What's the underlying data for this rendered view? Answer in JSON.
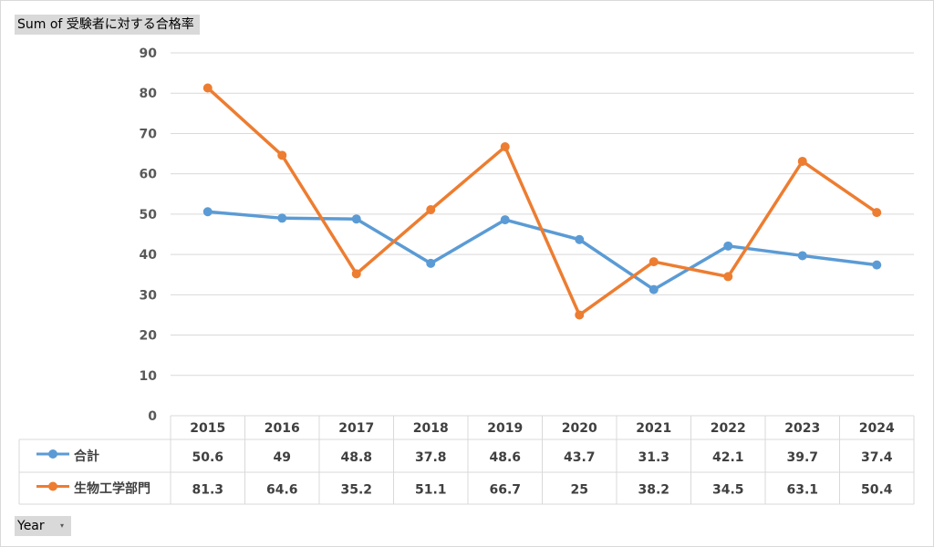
{
  "pivot": {
    "value_field": "Sum of 受験者に対する合格率",
    "axis_field": "Year",
    "dropdown_glyph": "▾"
  },
  "chart_data": {
    "type": "line",
    "x": [
      "2015",
      "2016",
      "2017",
      "2018",
      "2019",
      "2020",
      "2021",
      "2022",
      "2023",
      "2024"
    ],
    "series": [
      {
        "name": "合計",
        "color": "#5b9bd5",
        "values": [
          50.6,
          49,
          48.8,
          37.8,
          48.6,
          43.7,
          31.3,
          42.1,
          39.7,
          37.4
        ]
      },
      {
        "name": "生物工学部門",
        "color": "#ed7d31",
        "values": [
          81.3,
          64.6,
          35.2,
          51.1,
          66.7,
          25,
          38.2,
          34.5,
          63.1,
          50.4
        ]
      }
    ],
    "ylim": [
      0,
      90
    ],
    "yticks": [
      0,
      10,
      20,
      30,
      40,
      50,
      60,
      70,
      80,
      90
    ],
    "grid": true,
    "data_table": true
  }
}
